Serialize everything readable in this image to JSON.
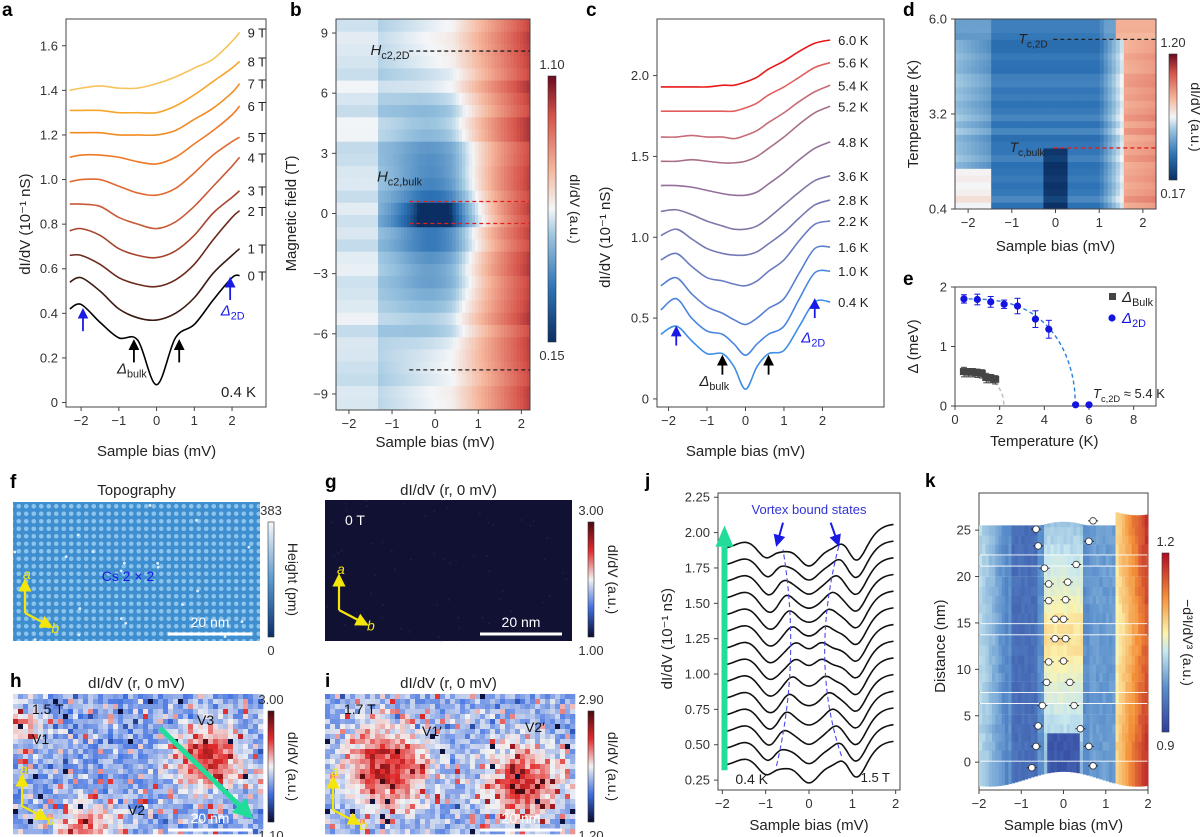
{
  "chart_data": [
    {
      "panel": "a",
      "type": "line",
      "title": "",
      "xlabel": "Sample bias (mV)",
      "ylabel": "dI/dV (10⁻¹ nS)",
      "xlim": [
        -2.4,
        2.9
      ],
      "ylim": [
        -0.02,
        1.72
      ],
      "xticks": [
        -2,
        -1,
        0,
        1,
        2
      ],
      "yticks": [
        0,
        0.2,
        0.4,
        0.6,
        0.8,
        1.0,
        1.2,
        1.4,
        1.6
      ],
      "ytick_labels": [
        "0",
        "0.2",
        "0.4",
        "0.6",
        "0.8",
        "1.0",
        "1.2",
        "1.4",
        "1.6"
      ],
      "annotation_temp": "0.4 K",
      "annotations": {
        "bulk": "Δbulk",
        "twoD": "Δ2D"
      },
      "x": [
        -2.3,
        -2.0,
        -1.5,
        -1.0,
        -0.5,
        0.0,
        0.5,
        1.0,
        1.5,
        2.0,
        2.2
      ],
      "series": [
        {
          "name": "0 T",
          "color": "#000000",
          "values": [
            0.42,
            0.44,
            0.36,
            0.29,
            0.28,
            0.08,
            0.29,
            0.35,
            0.46,
            0.56,
            0.57
          ]
        },
        {
          "name": "1 T",
          "color": "#3b1a12",
          "values": [
            0.54,
            0.56,
            0.5,
            0.42,
            0.38,
            0.37,
            0.4,
            0.47,
            0.58,
            0.66,
            0.69
          ]
        },
        {
          "name": "2 T",
          "color": "#6b2a1c",
          "values": [
            0.66,
            0.66,
            0.62,
            0.56,
            0.53,
            0.52,
            0.55,
            0.62,
            0.73,
            0.83,
            0.86
          ]
        },
        {
          "name": "3 T",
          "color": "#a8442e",
          "values": [
            0.77,
            0.78,
            0.75,
            0.69,
            0.66,
            0.65,
            0.68,
            0.75,
            0.85,
            0.92,
            0.95
          ]
        },
        {
          "name": "4 T",
          "color": "#c85a3a",
          "values": [
            0.89,
            0.89,
            0.88,
            0.83,
            0.8,
            0.78,
            0.81,
            0.88,
            0.97,
            1.06,
            1.1
          ]
        },
        {
          "name": "5 T",
          "color": "#e06a30",
          "values": [
            0.99,
            1.0,
            1.0,
            0.97,
            0.94,
            0.93,
            0.96,
            1.03,
            1.11,
            1.17,
            1.19
          ]
        },
        {
          "name": "6 T",
          "color": "#ee7a28",
          "values": [
            1.1,
            1.11,
            1.11,
            1.1,
            1.08,
            1.07,
            1.1,
            1.16,
            1.22,
            1.29,
            1.33
          ]
        },
        {
          "name": "7 T",
          "color": "#f28c22",
          "values": [
            1.21,
            1.21,
            1.21,
            1.2,
            1.2,
            1.2,
            1.22,
            1.27,
            1.32,
            1.39,
            1.43
          ]
        },
        {
          "name": "8 T",
          "color": "#f5a52a",
          "values": [
            1.31,
            1.31,
            1.31,
            1.3,
            1.3,
            1.3,
            1.33,
            1.38,
            1.44,
            1.5,
            1.53
          ]
        },
        {
          "name": "9 T",
          "color": "#f7c35a",
          "values": [
            1.4,
            1.41,
            1.42,
            1.41,
            1.41,
            1.43,
            1.46,
            1.5,
            1.54,
            1.62,
            1.66
          ]
        }
      ]
    },
    {
      "panel": "b",
      "type": "heatmap",
      "xlabel": "Sample bias (mV)",
      "ylabel": "Magnetic field (T)",
      "xlim": [
        -2.3,
        2.2
      ],
      "ylim": [
        -9.8,
        9.7
      ],
      "xticks": [
        -2,
        -1,
        0,
        1,
        2
      ],
      "yticks": [
        -9,
        -6,
        -3,
        0,
        3,
        6,
        9
      ],
      "colorbar": {
        "label": "dI/dV (a.u.)",
        "min": 0.15,
        "max": 1.1,
        "cmap": "RdBu_r"
      },
      "annotations": {
        "hc2_2d": "Hc2,2D",
        "hc2_bulk": "Hc2,bulk"
      },
      "hc2_2d_field": 8.1,
      "hc2_2d_field_neg": -7.8,
      "hc2_bulk_fields": [
        0.6,
        -0.5
      ]
    },
    {
      "panel": "c",
      "type": "line",
      "xlabel": "Sample bias (mV)",
      "ylabel": "dI/dV (10⁻¹ nS)",
      "xlim": [
        -2.3,
        3.6
      ],
      "ylim": [
        -0.05,
        2.35
      ],
      "xticks": [
        -2,
        -1,
        0,
        1,
        2
      ],
      "yticks": [
        0,
        0.5,
        1.0,
        1.5,
        2.0
      ],
      "ytick_labels": [
        "0",
        "0.5",
        "1.0",
        "1.5",
        "2.0"
      ],
      "annotations": {
        "bulk": "Δbulk",
        "twoD": "Δ2D"
      },
      "x": [
        -2.2,
        -1.8,
        -1.4,
        -1.0,
        -0.6,
        -0.3,
        0.0,
        0.3,
        0.6,
        1.0,
        1.4,
        1.8,
        2.2
      ],
      "series": [
        {
          "name": "0.4 K",
          "color": "#3d8ee6",
          "values": [
            0.4,
            0.45,
            0.36,
            0.28,
            0.28,
            0.2,
            0.06,
            0.2,
            0.28,
            0.3,
            0.45,
            0.6,
            0.6
          ]
        },
        {
          "name": "1.0 K",
          "color": "#4a86de",
          "values": [
            0.55,
            0.62,
            0.5,
            0.42,
            0.4,
            0.34,
            0.27,
            0.34,
            0.4,
            0.45,
            0.62,
            0.78,
            0.79
          ]
        },
        {
          "name": "1.6 K",
          "color": "#5a80d0",
          "values": [
            0.7,
            0.75,
            0.65,
            0.57,
            0.53,
            0.49,
            0.46,
            0.5,
            0.56,
            0.62,
            0.78,
            0.93,
            0.94
          ]
        },
        {
          "name": "2.2 K",
          "color": "#6a7cc2",
          "values": [
            0.86,
            0.9,
            0.82,
            0.75,
            0.73,
            0.71,
            0.7,
            0.73,
            0.79,
            0.86,
            0.98,
            1.08,
            1.1
          ]
        },
        {
          "name": "2.8 K",
          "color": "#7478b4",
          "values": [
            1.01,
            1.05,
            0.99,
            0.93,
            0.9,
            0.89,
            0.89,
            0.91,
            0.96,
            1.03,
            1.12,
            1.2,
            1.23
          ]
        },
        {
          "name": "3.6 K",
          "color": "#8476a6",
          "values": [
            1.16,
            1.17,
            1.14,
            1.1,
            1.07,
            1.05,
            1.05,
            1.07,
            1.12,
            1.2,
            1.28,
            1.35,
            1.38
          ]
        },
        {
          "name": "4.8 K",
          "color": "#92709a",
          "values": [
            1.32,
            1.32,
            1.31,
            1.29,
            1.27,
            1.26,
            1.26,
            1.28,
            1.33,
            1.4,
            1.48,
            1.55,
            1.59
          ]
        },
        {
          "name": "5.2 K",
          "color": "#a86e88",
          "values": [
            1.47,
            1.47,
            1.48,
            1.47,
            1.46,
            1.46,
            1.47,
            1.5,
            1.55,
            1.62,
            1.7,
            1.77,
            1.81
          ]
        },
        {
          "name": "5.4 K",
          "color": "#c86a78",
          "values": [
            1.62,
            1.62,
            1.63,
            1.62,
            1.62,
            1.61,
            1.63,
            1.66,
            1.71,
            1.77,
            1.84,
            1.9,
            1.94
          ]
        },
        {
          "name": "5.6 K",
          "color": "#e25e5e",
          "values": [
            1.78,
            1.78,
            1.78,
            1.78,
            1.78,
            1.78,
            1.8,
            1.83,
            1.88,
            1.93,
            1.99,
            2.05,
            2.08
          ]
        },
        {
          "name": "6.0 K",
          "color": "#e81818",
          "values": [
            1.93,
            1.93,
            1.93,
            1.93,
            1.94,
            1.94,
            1.96,
            1.99,
            2.04,
            2.09,
            2.15,
            2.2,
            2.22
          ]
        }
      ]
    },
    {
      "panel": "d",
      "type": "heatmap",
      "xlabel": "Sample bias (mV)",
      "ylabel": "Temperature (K)",
      "xlim": [
        -2.3,
        2.3
      ],
      "ylim": [
        0.4,
        6.0
      ],
      "xticks": [
        -2,
        -1,
        0,
        1,
        2
      ],
      "yticks": [
        0.4,
        3.2,
        6.0
      ],
      "ytick_labels": [
        "0.4",
        "3.2",
        "6.0"
      ],
      "colorbar": {
        "label": "dI/dV (a.u.)",
        "min": 0.17,
        "max": 1.2,
        "cmap": "RdBu_r"
      },
      "annotations": {
        "tc2d": "Tc,2D",
        "tcbulk": "Tc,bulk"
      },
      "tc2d_temp": 5.4,
      "tcbulk_temp": 2.2
    },
    {
      "panel": "e",
      "type": "scatter",
      "xlabel": "Temperature (K)",
      "ylabel": "Δ (meV)",
      "xlim": [
        0,
        9
      ],
      "ylim": [
        0,
        2
      ],
      "xticks": [
        0,
        2,
        4,
        6,
        8
      ],
      "yticks": [
        0,
        1,
        2
      ],
      "legend": {
        "position": "top-right",
        "entries": [
          "ΔBulk",
          "Δ2D"
        ]
      },
      "annotation": "Tc,2D ≈ 5.4 K",
      "series": [
        {
          "name": "ΔBulk",
          "color": "#444444",
          "marker": "square",
          "x": [
            0.4,
            0.6,
            0.8,
            1.0,
            1.2,
            1.4,
            1.6,
            1.8
          ],
          "y": [
            0.57,
            0.56,
            0.56,
            0.55,
            0.54,
            0.47,
            0.46,
            0.44
          ],
          "err": [
            0.08,
            0.07,
            0.07,
            0.07,
            0.07,
            0.08,
            0.07,
            0.07
          ],
          "fit_color": "#bbbbbb",
          "fit_tc": 2.2
        },
        {
          "name": "Δ2D",
          "color": "#1414e0",
          "marker": "circle",
          "x": [
            0.4,
            1.0,
            1.6,
            2.2,
            2.8,
            3.6,
            4.2,
            5.4,
            6.0
          ],
          "y": [
            1.8,
            1.79,
            1.75,
            1.71,
            1.68,
            1.46,
            1.29,
            0.02,
            0.02
          ],
          "err": [
            0.07,
            0.09,
            0.09,
            0.07,
            0.13,
            0.14,
            0.15,
            0,
            0
          ],
          "fit_color": "#2a80d8",
          "fit_tc": 5.4
        }
      ]
    },
    {
      "panel": "f",
      "type": "heatmap",
      "title": "Topography",
      "label": "Cs 2 × 2",
      "scalebar": "20 nm",
      "axes": [
        "a",
        "b"
      ],
      "colorbar": {
        "label": "Height (pm)",
        "min": "0",
        "max": "383",
        "cmap": "Blues_r"
      }
    },
    {
      "panel": "g",
      "type": "heatmap",
      "title": "dI/dV (r, 0 mV)",
      "field": "0 T",
      "scalebar": "20 nm",
      "axes": [
        "a",
        "b"
      ],
      "colorbar": {
        "label": "dI/dV (a.u.)",
        "min": "1.00",
        "max": "3.00",
        "cmap": "seismic"
      }
    },
    {
      "panel": "h",
      "type": "heatmap",
      "title": "dI/dV (r, 0 mV)",
      "field": "1.5 T",
      "vortices": [
        "V1",
        "V2",
        "V3"
      ],
      "scalebar": "20 nm",
      "axes": [
        "a",
        "b"
      ],
      "colorbar": {
        "label": "dI/dV (a.u.)",
        "min": "1.10",
        "max": "3.00",
        "cmap": "seismic"
      }
    },
    {
      "panel": "i",
      "type": "heatmap",
      "title": "dI/dV (r, 0 mV)",
      "field": "1.7 T",
      "vortices": [
        "V1′",
        "V2′"
      ],
      "scalebar": "20 nm",
      "axes": [
        "a",
        "b"
      ],
      "colorbar": {
        "label": "dI/dV (a.u.)",
        "min": "1.20",
        "max": "2.90",
        "cmap": "seismic"
      }
    },
    {
      "panel": "j",
      "type": "line",
      "xlabel": "Sample bias (mV)",
      "ylabel": "dI/dV (10⁻¹ nS)",
      "xlim": [
        -2.1,
        2.1
      ],
      "ylim": [
        0.18,
        2.28
      ],
      "xticks": [
        -2,
        -1,
        0,
        1,
        2
      ],
      "yticks": [
        0.25,
        0.5,
        0.75,
        1.0,
        1.25,
        1.5,
        1.75,
        2.0,
        2.25
      ],
      "ytick_labels": [
        "0.25",
        "0.50",
        "0.75",
        "1.00",
        "1.25",
        "1.50",
        "1.75",
        "2.00",
        "2.25"
      ],
      "annotation_temp": "0.4 K",
      "annotation_field": "1.5 T",
      "annotation_vbs": "Vortex bound states",
      "arrow_color": "#22dd99",
      "n_curves": 14,
      "offset_start": 0.35,
      "offset_step": 0.118
    },
    {
      "panel": "k",
      "type": "heatmap",
      "xlabel": "Sample bias (mV)",
      "ylabel": "Distance (nm)",
      "xlim": [
        -2,
        2
      ],
      "ylim": [
        -3,
        29
      ],
      "xticks": [
        -2,
        -1,
        0,
        1,
        2
      ],
      "yticks": [
        0,
        5,
        10,
        15,
        20,
        25
      ],
      "colorbar": {
        "label": "−d³I/dV³ (a.u.)",
        "min": "0.9",
        "max": "1.2",
        "cmap": "RdYlBu_r"
      },
      "peaks_left": [
        [
          -0.75,
          -0.6
        ],
        [
          -0.65,
          1.7
        ],
        [
          -0.6,
          3.9
        ],
        [
          -0.5,
          6.1
        ],
        [
          -0.4,
          8.6
        ],
        [
          -0.35,
          10.8
        ],
        [
          -0.2,
          13.3
        ],
        [
          -0.2,
          15.4
        ],
        [
          -0.35,
          17.4
        ],
        [
          -0.35,
          19.2
        ],
        [
          -0.45,
          20.9
        ],
        [
          -0.6,
          23.3
        ],
        [
          -0.65,
          25.1
        ]
      ],
      "peaks_right": [
        [
          0.7,
          -0.4
        ],
        [
          0.6,
          1.7
        ],
        [
          0.4,
          3.6
        ],
        [
          0.25,
          6.1
        ],
        [
          0.15,
          8.6
        ],
        [
          0.0,
          10.9
        ],
        [
          0.05,
          13.3
        ],
        [
          0.0,
          15.4
        ],
        [
          0.05,
          17.5
        ],
        [
          0.1,
          19.4
        ],
        [
          0.3,
          21.3
        ],
        [
          0.6,
          23.8
        ],
        [
          0.7,
          26.0
        ]
      ]
    }
  ],
  "panel_labels": [
    "a",
    "b",
    "c",
    "d",
    "e",
    "f",
    "g",
    "h",
    "i",
    "j",
    "k"
  ]
}
